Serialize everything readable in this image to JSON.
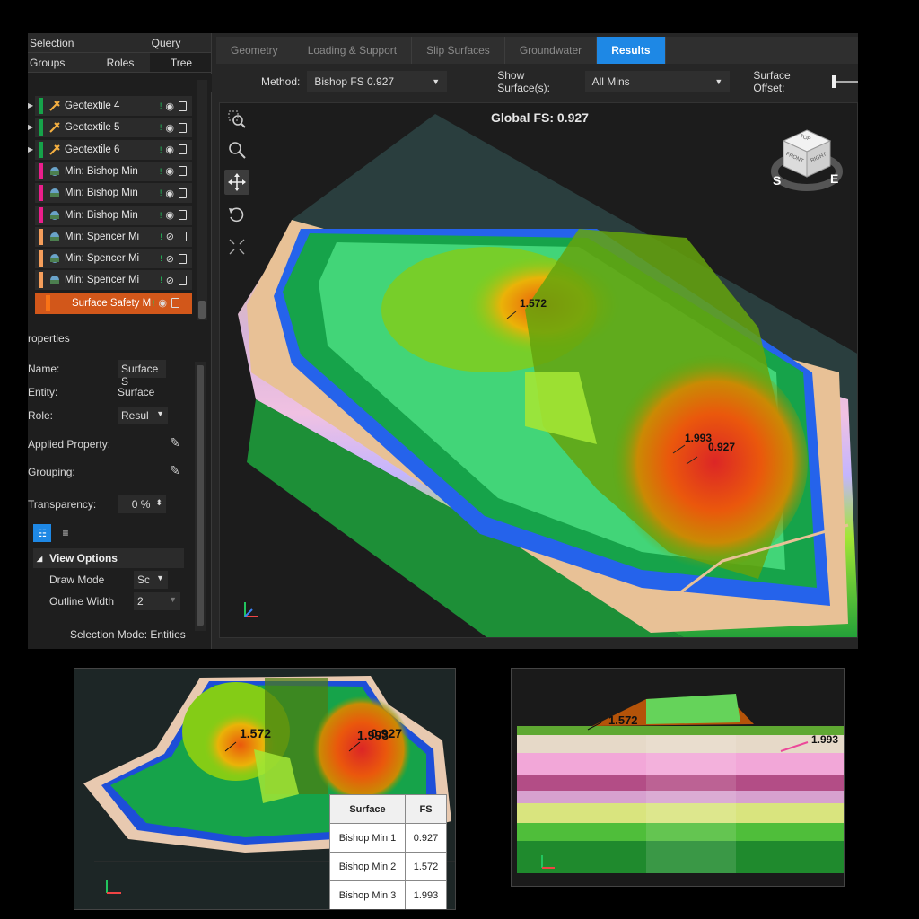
{
  "left_panel": {
    "top_tabs": [
      "Selection",
      "Query"
    ],
    "sub_tabs": [
      "Groups",
      "Roles",
      "Tree"
    ],
    "tree_items": [
      {
        "label": "Geotextile  4",
        "swatch": "#16a34a",
        "icon": "geotextile-icon"
      },
      {
        "label": "Geotextile  5",
        "swatch": "#16a34a",
        "icon": "geotextile-icon"
      },
      {
        "label": "Geotextile  6",
        "swatch": "#16a34a",
        "icon": "geotextile-icon"
      },
      {
        "label": "Min: Bishop Min",
        "swatch": "#ec1e8c",
        "icon": "slip-surface-icon"
      },
      {
        "label": "Min: Bishop Min",
        "swatch": "#ec1e8c",
        "icon": "slip-surface-icon"
      },
      {
        "label": "Min: Bishop Min",
        "swatch": "#ec1e8c",
        "icon": "slip-surface-icon"
      },
      {
        "label": "Min: Spencer Mi",
        "swatch": "#f59e5b",
        "icon": "slip-surface-icon"
      },
      {
        "label": "Min: Spencer Mi",
        "swatch": "#f59e5b",
        "icon": "slip-surface-icon"
      },
      {
        "label": "Min: Spencer Mi",
        "swatch": "#f59e5b",
        "icon": "slip-surface-icon"
      },
      {
        "label": "Surface Safety M",
        "swatch": "#f97316",
        "icon": "surface-icon"
      }
    ],
    "properties_title": "roperties",
    "properties": {
      "name_label": "Name:",
      "name_value": "Surface S",
      "entity_label": "Entity:",
      "entity_value": "Surface",
      "role_label": "Role:",
      "role_value": "Resul",
      "applied_label": "Applied Property:",
      "grouping_label": "Grouping:",
      "transparency_label": "Transparency:",
      "transparency_value": "0 %"
    },
    "view_options": {
      "title": "View Options",
      "draw_mode_label": "Draw Mode",
      "draw_mode_value": "Sc",
      "outline_label": "Outline Width",
      "outline_value": "2"
    },
    "selection_mode": "Selection Mode: Entities"
  },
  "ribbon": {
    "steps": [
      "Geometry",
      "Loading & Support",
      "Slip Surfaces",
      "Groundwater",
      "Results"
    ],
    "active": "Results"
  },
  "toolbar": {
    "method_label": "Method:",
    "method_value": "Bishop FS   0.927",
    "show_label": "Show Surface(s):",
    "show_value": "All Mins",
    "offset_label": "Surface Offset:"
  },
  "viewport": {
    "title": "Global FS: 0.927",
    "labels": [
      "1.572",
      "1.993",
      "0.927"
    ],
    "navcube": {
      "top": "TOP",
      "front": "FRONT",
      "right": "RIGHT",
      "south": "S",
      "east": "E"
    },
    "tools": [
      "zoom-box-icon",
      "zoom-icon",
      "pan-icon",
      "rotate-icon",
      "fit-icon"
    ]
  },
  "bottom_left": {
    "labels": [
      "1.572",
      "1.993",
      "0.927"
    ],
    "table": {
      "headers": [
        "Surface",
        "FS"
      ],
      "rows": [
        [
          "Bishop Min 1",
          "0.927"
        ],
        [
          "Bishop Min 2",
          "1.572"
        ],
        [
          "Bishop Min 3",
          "1.993"
        ]
      ]
    }
  },
  "bottom_right": {
    "labels": [
      "1.572",
      "1.993"
    ]
  }
}
